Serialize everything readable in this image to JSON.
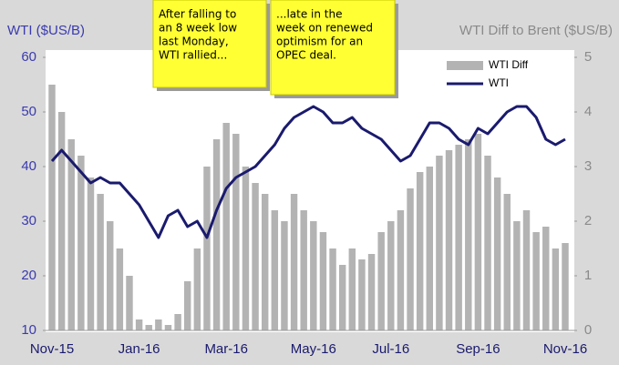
{
  "chart_data": {
    "type": "bar-line",
    "y_label": "WTI ($US/B)",
    "y2_label": "WTI Diff to Brent ($US/B)",
    "annotations": [
      {
        "lines": [
          "After falling to",
          "an 8 week low",
          "last Monday,",
          "WTI rallied..."
        ]
      },
      {
        "lines": [
          "...late in the",
          "week on renewed",
          "optimism for an",
          "OPEC deal."
        ]
      }
    ],
    "categories": [
      "Nov-15",
      null,
      null,
      null,
      null,
      null,
      null,
      null,
      null,
      "Jan-16",
      null,
      null,
      null,
      null,
      null,
      null,
      null,
      null,
      "Mar-16",
      null,
      null,
      null,
      null,
      null,
      null,
      null,
      null,
      "May-16",
      null,
      null,
      null,
      null,
      null,
      null,
      null,
      "Jul-16",
      null,
      null,
      null,
      null,
      null,
      null,
      null,
      null,
      "Sep-16",
      null,
      null,
      null,
      null,
      null,
      null,
      null,
      null,
      "Nov-16"
    ],
    "series": [
      {
        "name": "WTI Diff",
        "color": "#b3b3b3",
        "kind": "bar",
        "axis": "y2",
        "values": [
          4.5,
          4.0,
          3.5,
          3.2,
          2.8,
          2.5,
          2.0,
          1.5,
          1.0,
          0.2,
          0.1,
          0.2,
          0.1,
          0.3,
          0.9,
          1.5,
          3.0,
          3.5,
          3.8,
          3.6,
          3.0,
          2.7,
          2.5,
          2.2,
          2.0,
          2.5,
          2.2,
          2.0,
          1.8,
          1.5,
          1.2,
          1.5,
          1.3,
          1.4,
          1.8,
          2.0,
          2.2,
          2.6,
          2.9,
          3.0,
          3.2,
          3.3,
          3.4,
          3.5,
          3.6,
          3.2,
          2.8,
          2.5,
          2.0,
          2.2,
          1.8,
          1.9,
          1.5,
          1.6
        ]
      },
      {
        "name": "WTI",
        "color": "#1a1a6e",
        "kind": "line",
        "axis": "y",
        "values": [
          41,
          43,
          41,
          39,
          37,
          38,
          37,
          37,
          35,
          33,
          30,
          27,
          31,
          32,
          29,
          30,
          27,
          32,
          36,
          38,
          39,
          40,
          42,
          44,
          47,
          49,
          50,
          51,
          50,
          48,
          48,
          49,
          47,
          46,
          45,
          43,
          41,
          42,
          45,
          48,
          48,
          47,
          45,
          44,
          47,
          46,
          48,
          50,
          51,
          51,
          49,
          45,
          44,
          45
        ]
      }
    ],
    "ylim": [
      10,
      60
    ],
    "yticks": [
      10,
      20,
      30,
      40,
      50,
      60
    ],
    "y2lim": [
      0,
      5
    ],
    "y2ticks": [
      0,
      1,
      2,
      3,
      4,
      5
    ],
    "legend": "top-right"
  }
}
